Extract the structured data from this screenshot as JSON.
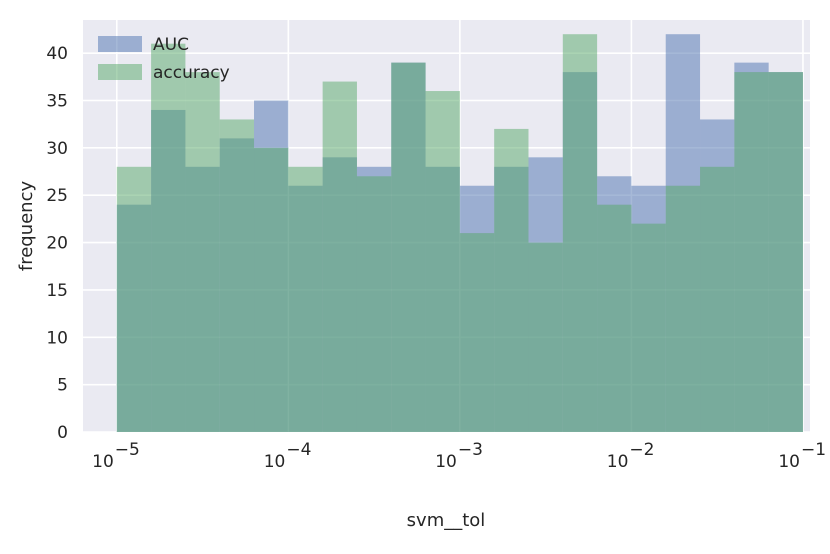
{
  "chart_data": {
    "type": "bar",
    "subtype": "overlaid-histogram",
    "title": "",
    "xlabel": "svm__tol",
    "ylabel": "frequency",
    "xscale": "log",
    "xlim": [
      7e-06,
      0.00013
    ],
    "ylim": [
      0,
      43.5
    ],
    "bin_edges_log10": [
      -5,
      -4.8,
      -4.6,
      -4.4,
      -4.2,
      -4,
      -3.8,
      -3.6,
      -3.4,
      -3.2,
      -3,
      -2.8,
      -2.6,
      -2.4,
      -2.2,
      -2,
      -1.8,
      -1.6,
      -1.4,
      -1.2,
      -1
    ],
    "x_ticks": [
      {
        "base": "10",
        "exp": "−5",
        "value": 1e-05
      },
      {
        "base": "10",
        "exp": "−4",
        "value": 0.0001
      },
      {
        "base": "10",
        "exp": "−3",
        "value": 0.001
      },
      {
        "base": "10",
        "exp": "−2",
        "value": 0.01
      },
      {
        "base": "10",
        "exp": "−1",
        "value": 0.1
      }
    ],
    "y_ticks": [
      "0",
      "5",
      "10",
      "15",
      "20",
      "25",
      "30",
      "35",
      "40"
    ],
    "grid": true,
    "legend_position": "top-left",
    "series": [
      {
        "name": "AUC",
        "color": "#4C72B0",
        "values": [
          24,
          34,
          28,
          31,
          35,
          26,
          29,
          28,
          39,
          28,
          26,
          28,
          29,
          38,
          27,
          26,
          42,
          33,
          39,
          38
        ]
      },
      {
        "name": "accuracy",
        "color": "#55A868",
        "values": [
          28,
          41,
          38,
          33,
          30,
          28,
          37,
          27,
          39,
          36,
          21,
          32,
          20,
          42,
          24,
          22,
          26,
          28,
          38,
          38
        ]
      }
    ]
  }
}
